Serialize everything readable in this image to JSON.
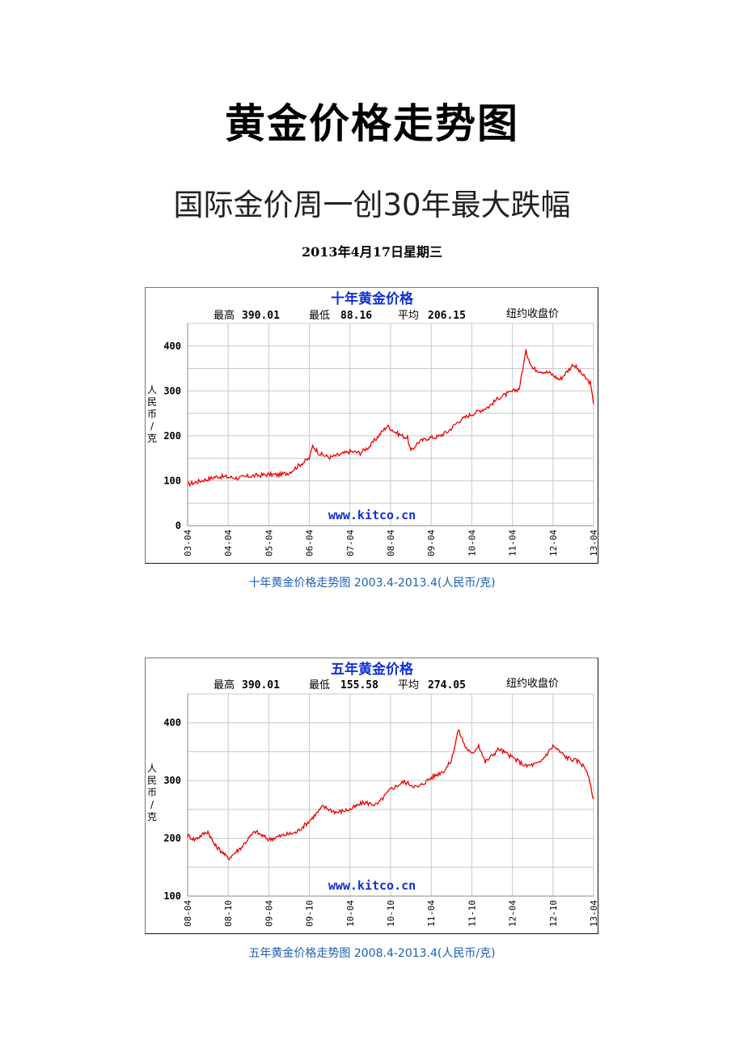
{
  "document": {
    "title": "黄金价格走势图",
    "subtitle": "国际金价周一创30年最大跌幅",
    "date": "2013年4月17日星期三"
  },
  "charts": [
    {
      "caption": "十年黄金价格走势图 2003.4-2013.4(人民币/克)",
      "header": {
        "title": "十年黄金价格",
        "high_label": "最高",
        "high_value": "390.01",
        "low_label": "最低",
        "low_value": "88.16",
        "avg_label": "平均",
        "avg_value": "206.15",
        "note": "纽约收盘价"
      },
      "ylabel": "人民币/克",
      "watermark": "www.kitco.cn"
    },
    {
      "caption": "五年黄金价格走势图 2008.4-2013.4(人民币/克)",
      "header": {
        "title": "五年黄金价格",
        "high_label": "最高",
        "high_value": "390.01",
        "low_label": "最低",
        "low_value": "155.58",
        "avg_label": "平均",
        "avg_value": "274.05",
        "note": "纽约收盘价"
      },
      "ylabel": "人民币/克",
      "watermark": "www.kitco.cn"
    }
  ],
  "chart_data": [
    {
      "type": "line",
      "title": "十年黄金价格",
      "xlabel": "",
      "ylabel": "人民币/克",
      "ylim": [
        0,
        450
      ],
      "yticks": [
        0,
        100,
        200,
        300,
        400
      ],
      "xticks": [
        "03-04",
        "04-04",
        "05-04",
        "06-04",
        "07-04",
        "08-04",
        "09-04",
        "10-04",
        "11-04",
        "12-04",
        "13-04"
      ],
      "grid": true,
      "series": [
        {
          "color": "#ee0000",
          "points": [
            [
              "2003-04",
              92
            ],
            [
              "2003-07",
              98
            ],
            [
              "2003-10",
              104
            ],
            [
              "2004-01",
              110
            ],
            [
              "2004-04",
              108
            ],
            [
              "2004-07",
              106
            ],
            [
              "2004-10",
              110
            ],
            [
              "2005-01",
              112
            ],
            [
              "2005-04",
              114
            ],
            [
              "2005-07",
              113
            ],
            [
              "2005-10",
              118
            ],
            [
              "2006-01",
              135
            ],
            [
              "2006-04",
              150
            ],
            [
              "2006-05",
              178
            ],
            [
              "2006-07",
              160
            ],
            [
              "2006-10",
              152
            ],
            [
              "2007-01",
              158
            ],
            [
              "2007-04",
              165
            ],
            [
              "2007-07",
              162
            ],
            [
              "2007-10",
              178
            ],
            [
              "2008-01",
              205
            ],
            [
              "2008-03",
              222
            ],
            [
              "2008-06",
              205
            ],
            [
              "2008-09",
              195
            ],
            [
              "2008-10",
              165
            ],
            [
              "2008-12",
              185
            ],
            [
              "2009-03",
              195
            ],
            [
              "2009-06",
              198
            ],
            [
              "2009-09",
              210
            ],
            [
              "2009-12",
              232
            ],
            [
              "2010-03",
              245
            ],
            [
              "2010-06",
              255
            ],
            [
              "2010-09",
              265
            ],
            [
              "2010-12",
              285
            ],
            [
              "2011-03",
              295
            ],
            [
              "2011-06",
              305
            ],
            [
              "2011-08",
              388
            ],
            [
              "2011-10",
              350
            ],
            [
              "2011-12",
              345
            ],
            [
              "2012-03",
              340
            ],
            [
              "2012-06",
              325
            ],
            [
              "2012-09",
              350
            ],
            [
              "2012-10",
              360
            ],
            [
              "2012-12",
              342
            ],
            [
              "2013-02",
              325
            ],
            [
              "2013-03",
              318
            ],
            [
              "2013-04",
              270
            ]
          ]
        }
      ]
    },
    {
      "type": "line",
      "title": "五年黄金价格",
      "xlabel": "",
      "ylabel": "人民币/克",
      "ylim": [
        100,
        450
      ],
      "yticks": [
        100,
        200,
        300,
        400
      ],
      "xticks": [
        "08-04",
        "08-10",
        "09-04",
        "09-10",
        "10-04",
        "10-10",
        "11-04",
        "11-10",
        "12-04",
        "12-10",
        "13-04"
      ],
      "grid": true,
      "series": [
        {
          "color": "#ee0000",
          "points": [
            [
              "2008-04",
              205
            ],
            [
              "2008-05",
              198
            ],
            [
              "2008-06",
              205
            ],
            [
              "2008-07",
              212
            ],
            [
              "2008-08",
              188
            ],
            [
              "2008-09",
              178
            ],
            [
              "2008-10",
              165
            ],
            [
              "2008-11",
              175
            ],
            [
              "2008-12",
              185
            ],
            [
              "2009-01",
              200
            ],
            [
              "2009-02",
              212
            ],
            [
              "2009-03",
              205
            ],
            [
              "2009-04",
              198
            ],
            [
              "2009-06",
              205
            ],
            [
              "2009-08",
              210
            ],
            [
              "2009-10",
              230
            ],
            [
              "2009-12",
              255
            ],
            [
              "2010-02",
              245
            ],
            [
              "2010-04",
              250
            ],
            [
              "2010-06",
              262
            ],
            [
              "2010-08",
              258
            ],
            [
              "2010-10",
              285
            ],
            [
              "2010-12",
              298
            ],
            [
              "2011-02",
              288
            ],
            [
              "2011-04",
              305
            ],
            [
              "2011-06",
              318
            ],
            [
              "2011-07",
              335
            ],
            [
              "2011-08",
              388
            ],
            [
              "2011-09",
              360
            ],
            [
              "2011-10",
              345
            ],
            [
              "2011-11",
              362
            ],
            [
              "2011-12",
              332
            ],
            [
              "2012-02",
              355
            ],
            [
              "2012-04",
              340
            ],
            [
              "2012-06",
              325
            ],
            [
              "2012-08",
              330
            ],
            [
              "2012-10",
              360
            ],
            [
              "2012-12",
              340
            ],
            [
              "2013-02",
              332
            ],
            [
              "2013-03",
              318
            ],
            [
              "2013-04",
              268
            ]
          ]
        }
      ]
    }
  ]
}
